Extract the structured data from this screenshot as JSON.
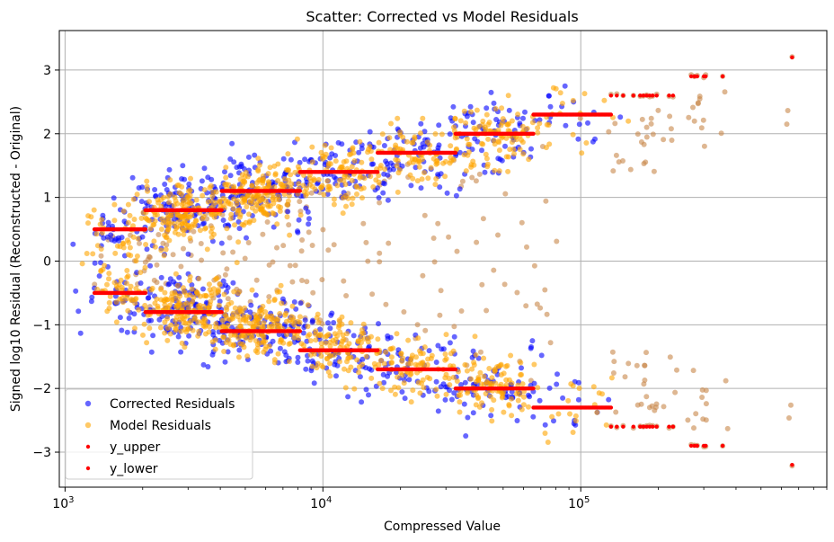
{
  "chart_data": {
    "type": "scatter",
    "title": "Scatter: Corrected vs Model Residuals",
    "xlabel": "Compressed Value",
    "ylabel": "Signed log10 Residual (Reconstructed - Original)",
    "xscale": "log",
    "xlim": [
      950,
      900000
    ],
    "ylim": [
      -3.55,
      3.62
    ],
    "grid": true,
    "legend_position": "lower-left",
    "x_ticks": [
      {
        "value": 1000,
        "base": "10",
        "exp": "3"
      },
      {
        "value": 10000,
        "base": "10",
        "exp": "4"
      },
      {
        "value": 100000,
        "base": "10",
        "exp": "5"
      }
    ],
    "y_ticks": [
      {
        "value": 3,
        "label": "3"
      },
      {
        "value": 2,
        "label": "2"
      },
      {
        "value": 1,
        "label": "1"
      },
      {
        "value": 0,
        "label": "0"
      },
      {
        "value": -1,
        "label": "−1"
      },
      {
        "value": -2,
        "label": "−2"
      },
      {
        "value": -3,
        "label": "−3"
      }
    ],
    "series": [
      {
        "name": "Corrected Residuals",
        "color": "#0000ff",
        "marker": "circle",
        "alpha": 0.6
      },
      {
        "name": "Model Residuals",
        "color": "#ffa500",
        "marker": "circle",
        "alpha": 0.6
      },
      {
        "name": "y_upper",
        "color": "#ff0000",
        "marker": "dot"
      },
      {
        "name": "y_lower",
        "color": "#ff0000",
        "marker": "dot"
      }
    ],
    "bins": [
      {
        "x_min": 1300,
        "x_max": 2050,
        "y": 0.5
      },
      {
        "x_min": 2050,
        "x_max": 4050,
        "y": 0.8
      },
      {
        "x_min": 4050,
        "x_max": 8150,
        "y": 1.1
      },
      {
        "x_min": 8150,
        "x_max": 16300,
        "y": 1.4
      },
      {
        "x_min": 16300,
        "x_max": 32700,
        "y": 1.7
      },
      {
        "x_min": 32700,
        "x_max": 65500,
        "y": 2.0
      },
      {
        "x_min": 65500,
        "x_max": 131000,
        "y": 2.3
      }
    ],
    "sparse_levels": [
      {
        "x": [
          131000,
          138000,
          146000,
          160000,
          170000,
          175000,
          180000,
          185000,
          190000,
          197000,
          220000,
          228000
        ],
        "y": 2.6
      },
      {
        "x": [
          268000,
          276000,
          283000,
          300000,
          305000,
          355000
        ],
        "y": 2.9
      },
      {
        "x": [
          660000
        ],
        "y": 3.2
      }
    ]
  }
}
